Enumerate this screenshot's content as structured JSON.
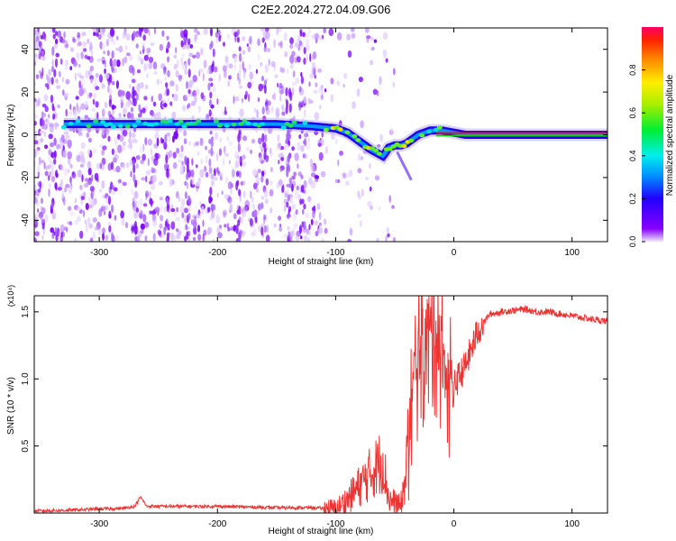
{
  "title": "C2E2.2024.272.04.09.G06",
  "chart_data": [
    {
      "type": "heatmap",
      "title": "C2E2.2024.272.04.09.G06",
      "xlabel": "Height of straight line (km)",
      "ylabel": "Frequency (Hz)",
      "xlim": [
        -355,
        130
      ],
      "ylim": [
        -50,
        50
      ],
      "xticks": [
        -300,
        -200,
        -100,
        0,
        100
      ],
      "yticks": [
        -40,
        -20,
        0,
        20,
        40
      ],
      "colorbar": {
        "label": "Normalized spectral amplitude",
        "range": [
          0.0,
          1.0
        ],
        "ticks": [
          0.0,
          0.2,
          0.4,
          0.6,
          0.8
        ],
        "tick_labels": [
          "0.0",
          "0.2",
          "0.4",
          "0.6",
          "0.8"
        ]
      },
      "ridge": {
        "x": [
          -330,
          -300,
          -250,
          -200,
          -150,
          -120,
          -100,
          -90,
          -80,
          -70,
          -60,
          -55,
          -50,
          -45,
          -40,
          -30,
          -20,
          -10,
          0,
          10,
          50,
          130
        ],
        "frequency": [
          5,
          5,
          5,
          5,
          5,
          4,
          3,
          1,
          -3,
          -7,
          -10,
          -6,
          -5,
          -5,
          -4,
          0,
          2,
          2,
          1,
          0,
          0,
          0
        ]
      },
      "noise_x_range": [
        -355,
        -110
      ]
    },
    {
      "type": "line",
      "xlabel": "Height of straight line (km)",
      "ylabel": "SNR (10 * v/v)",
      "scale_label": "(x10⁴)",
      "xlim": [
        -355,
        130
      ],
      "ylim": [
        0.0,
        1.62
      ],
      "xticks": [
        -300,
        -200,
        -100,
        0,
        100
      ],
      "yticks": [
        0.5,
        1.0,
        1.5
      ],
      "ytick_labels": [
        "0.5",
        "1.0",
        "1.5"
      ],
      "series": [
        {
          "name": "SNR",
          "color": "#ee3333",
          "x": [
            -355,
            -330,
            -300,
            -280,
            -270,
            -265,
            -260,
            -240,
            -200,
            -150,
            -120,
            -100,
            -90,
            -80,
            -70,
            -60,
            -55,
            -50,
            -45,
            -40,
            -35,
            -30,
            -25,
            -20,
            -15,
            -10,
            -5,
            0,
            10,
            20,
            30,
            40,
            50,
            60,
            70,
            80,
            100,
            120,
            130
          ],
          "values": [
            0.015,
            0.02,
            0.03,
            0.035,
            0.05,
            0.12,
            0.05,
            0.05,
            0.05,
            0.04,
            0.04,
            0.03,
            0.1,
            0.2,
            0.3,
            0.4,
            0.1,
            0.08,
            0.05,
            0.3,
            0.9,
            1.2,
            1.3,
            1.35,
            1.4,
            1.2,
            1.0,
            0.95,
            1.1,
            1.35,
            1.48,
            1.5,
            1.51,
            1.52,
            1.5,
            1.5,
            1.47,
            1.44,
            1.43
          ]
        }
      ]
    }
  ]
}
